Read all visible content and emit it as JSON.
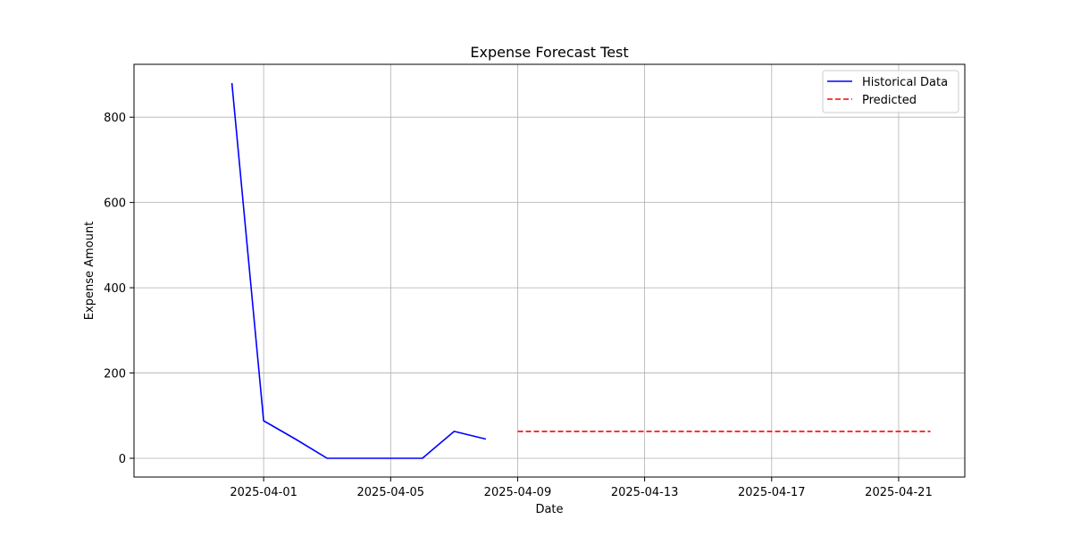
{
  "chart_data": {
    "type": "line",
    "title": "Expense Forecast Test",
    "xlabel": "Date",
    "ylabel": "Expense Amount",
    "xlim": [
      "2025-03-27 22:00",
      "2025-04-23 02:00"
    ],
    "ylim": [
      -44,
      924
    ],
    "x_ticks": [
      "2025-04-01",
      "2025-04-05",
      "2025-04-09",
      "2025-04-13",
      "2025-04-17",
      "2025-04-21"
    ],
    "y_ticks": [
      0,
      200,
      400,
      600,
      800
    ],
    "grid": true,
    "legend_position": "top-right",
    "series": [
      {
        "name": "Historical Data",
        "color": "#0000ff",
        "style": "solid",
        "x": [
          "2025-03-31",
          "2025-04-01",
          "2025-04-02",
          "2025-04-03",
          "2025-04-04",
          "2025-04-05",
          "2025-04-06",
          "2025-04-07",
          "2025-04-08"
        ],
        "y": [
          880,
          88,
          45,
          0,
          0,
          0,
          0,
          63,
          45
        ]
      },
      {
        "name": "Predicted",
        "color": "#ff0000",
        "style": "dashed",
        "x": [
          "2025-04-09",
          "2025-04-10",
          "2025-04-11",
          "2025-04-12",
          "2025-04-13",
          "2025-04-14",
          "2025-04-15",
          "2025-04-16",
          "2025-04-17",
          "2025-04-18",
          "2025-04-19",
          "2025-04-20",
          "2025-04-21",
          "2025-04-22"
        ],
        "y": [
          63,
          63,
          63,
          63,
          63,
          63,
          63,
          63,
          63,
          63,
          63,
          63,
          63,
          63
        ]
      }
    ]
  }
}
